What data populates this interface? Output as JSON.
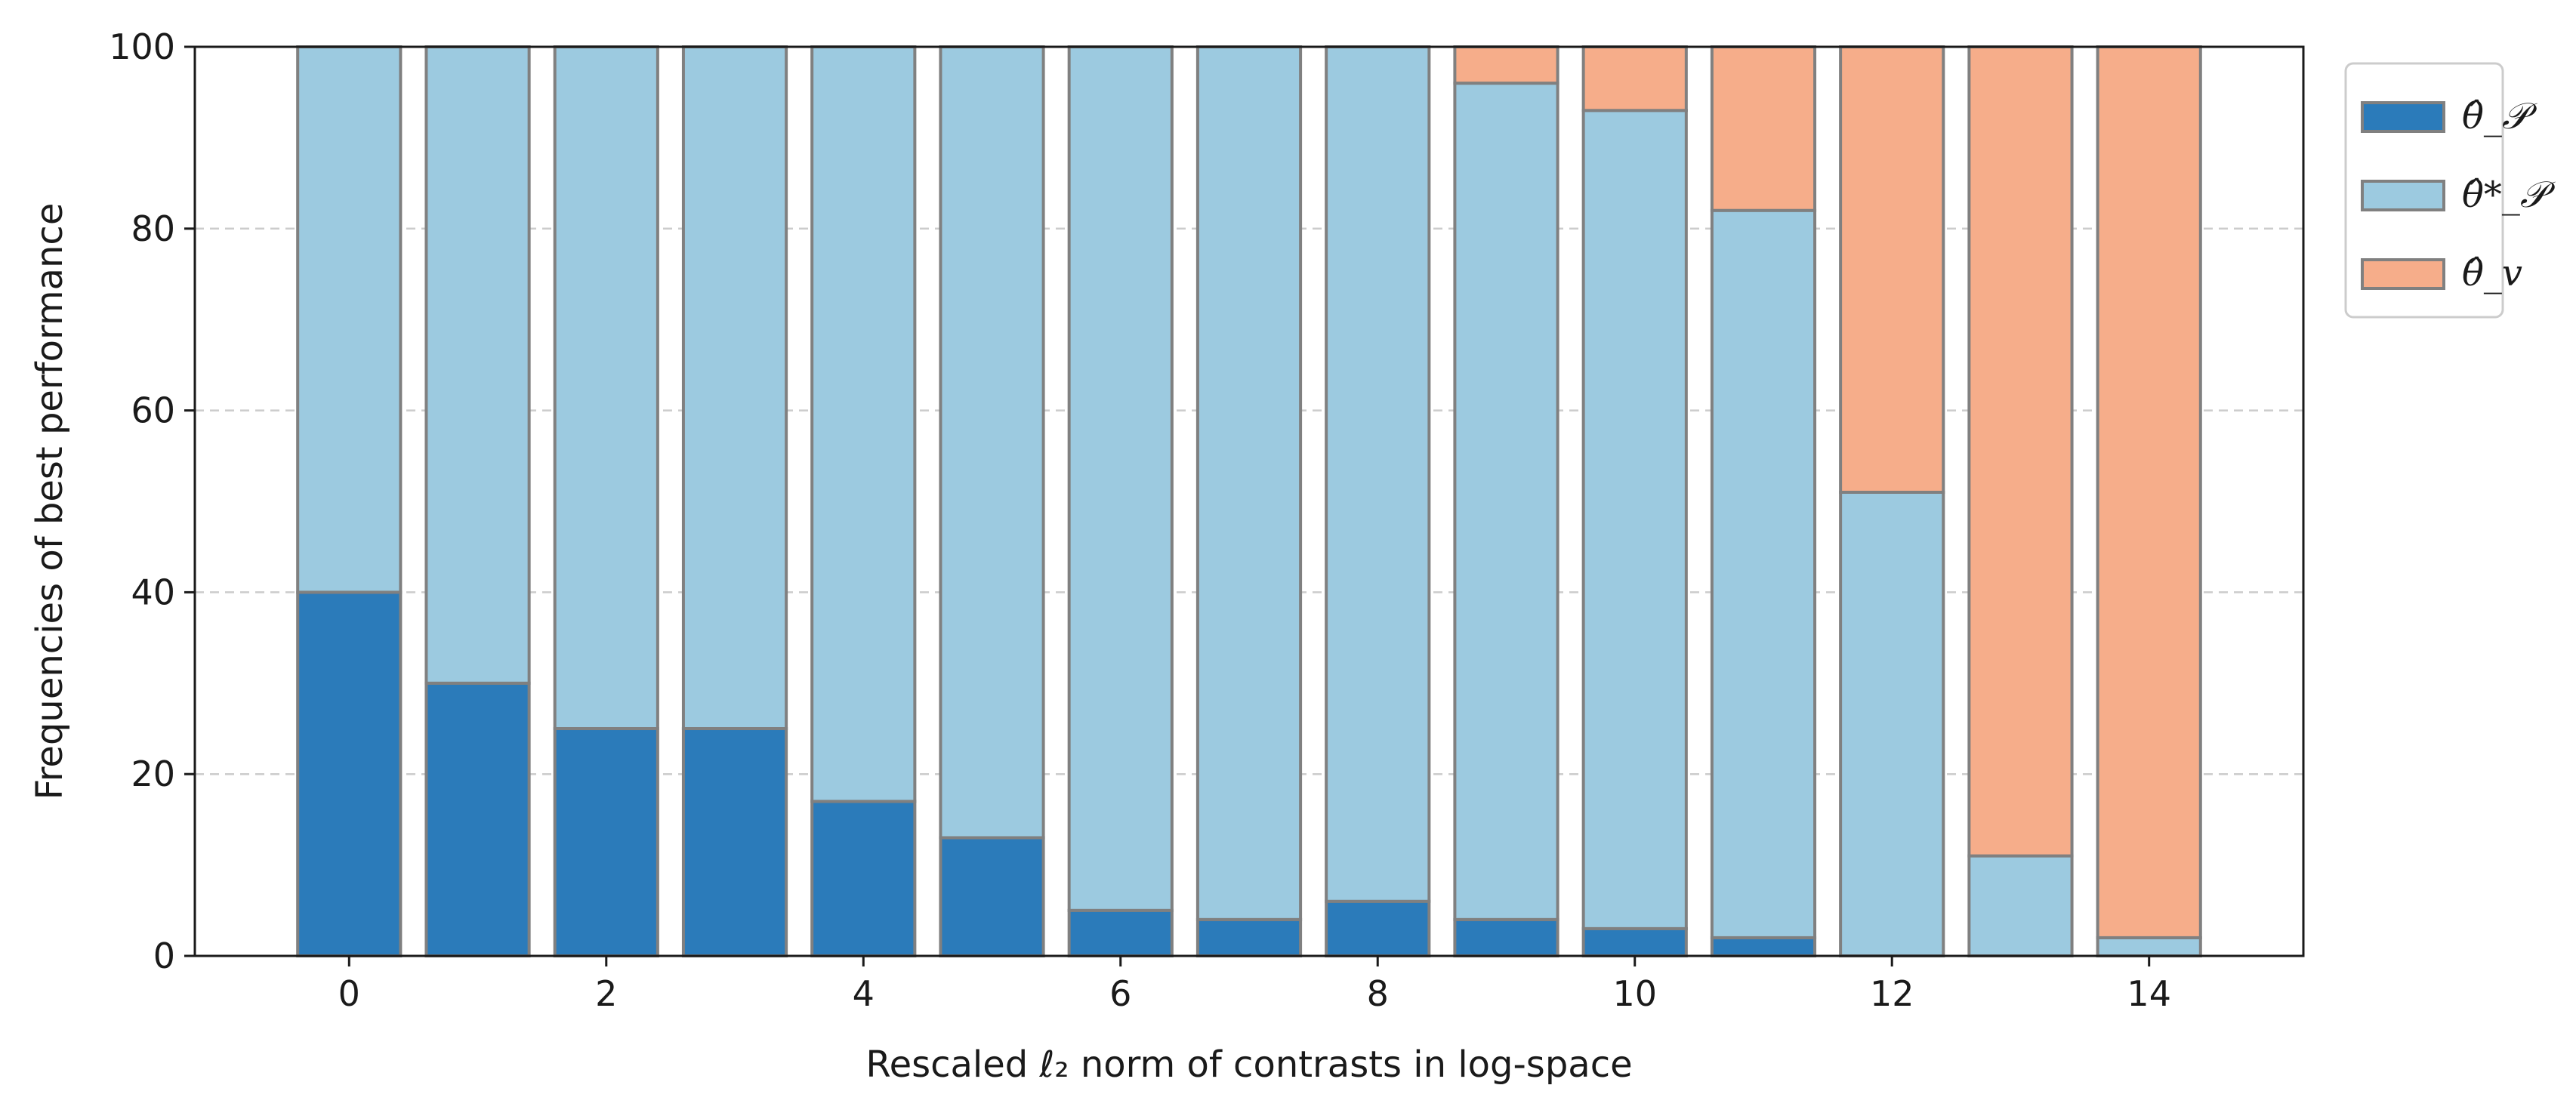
{
  "chart_data": {
    "type": "bar",
    "stacked": true,
    "xlabel": "Rescaled ℓ₂ norm of contrasts in log-space",
    "ylabel": "Frequencies of best performance",
    "xlim": [
      -1.2,
      15.2
    ],
    "ylim": [
      0,
      100
    ],
    "grid": "y dashed",
    "legend_position": "outside-top-right",
    "x": [
      0,
      1,
      2,
      3,
      4,
      5,
      6,
      7,
      8,
      9,
      10,
      11,
      12,
      13,
      14
    ],
    "x_ticks": [
      0,
      2,
      4,
      6,
      8,
      10,
      12,
      14
    ],
    "y_ticks": [
      0,
      20,
      40,
      60,
      80,
      100
    ],
    "series": [
      {
        "name": "θ̂_𝒫",
        "color": "#2b7bba",
        "values": [
          40,
          30,
          25,
          25,
          17,
          13,
          5,
          4,
          6,
          4,
          3,
          2,
          0,
          0,
          0
        ]
      },
      {
        "name": "θ̂*_𝒫",
        "color": "#9ccae0",
        "values": [
          60,
          70,
          75,
          75,
          83,
          87,
          95,
          96,
          94,
          92,
          90,
          80,
          51,
          11,
          2
        ]
      },
      {
        "name": "θ̂_v",
        "color": "#f6ad8a",
        "values": [
          0,
          0,
          0,
          0,
          0,
          0,
          0,
          0,
          0,
          4,
          7,
          18,
          49,
          89,
          98
        ]
      }
    ],
    "edge_color": "#808080",
    "grid_color": "#cccccc"
  }
}
